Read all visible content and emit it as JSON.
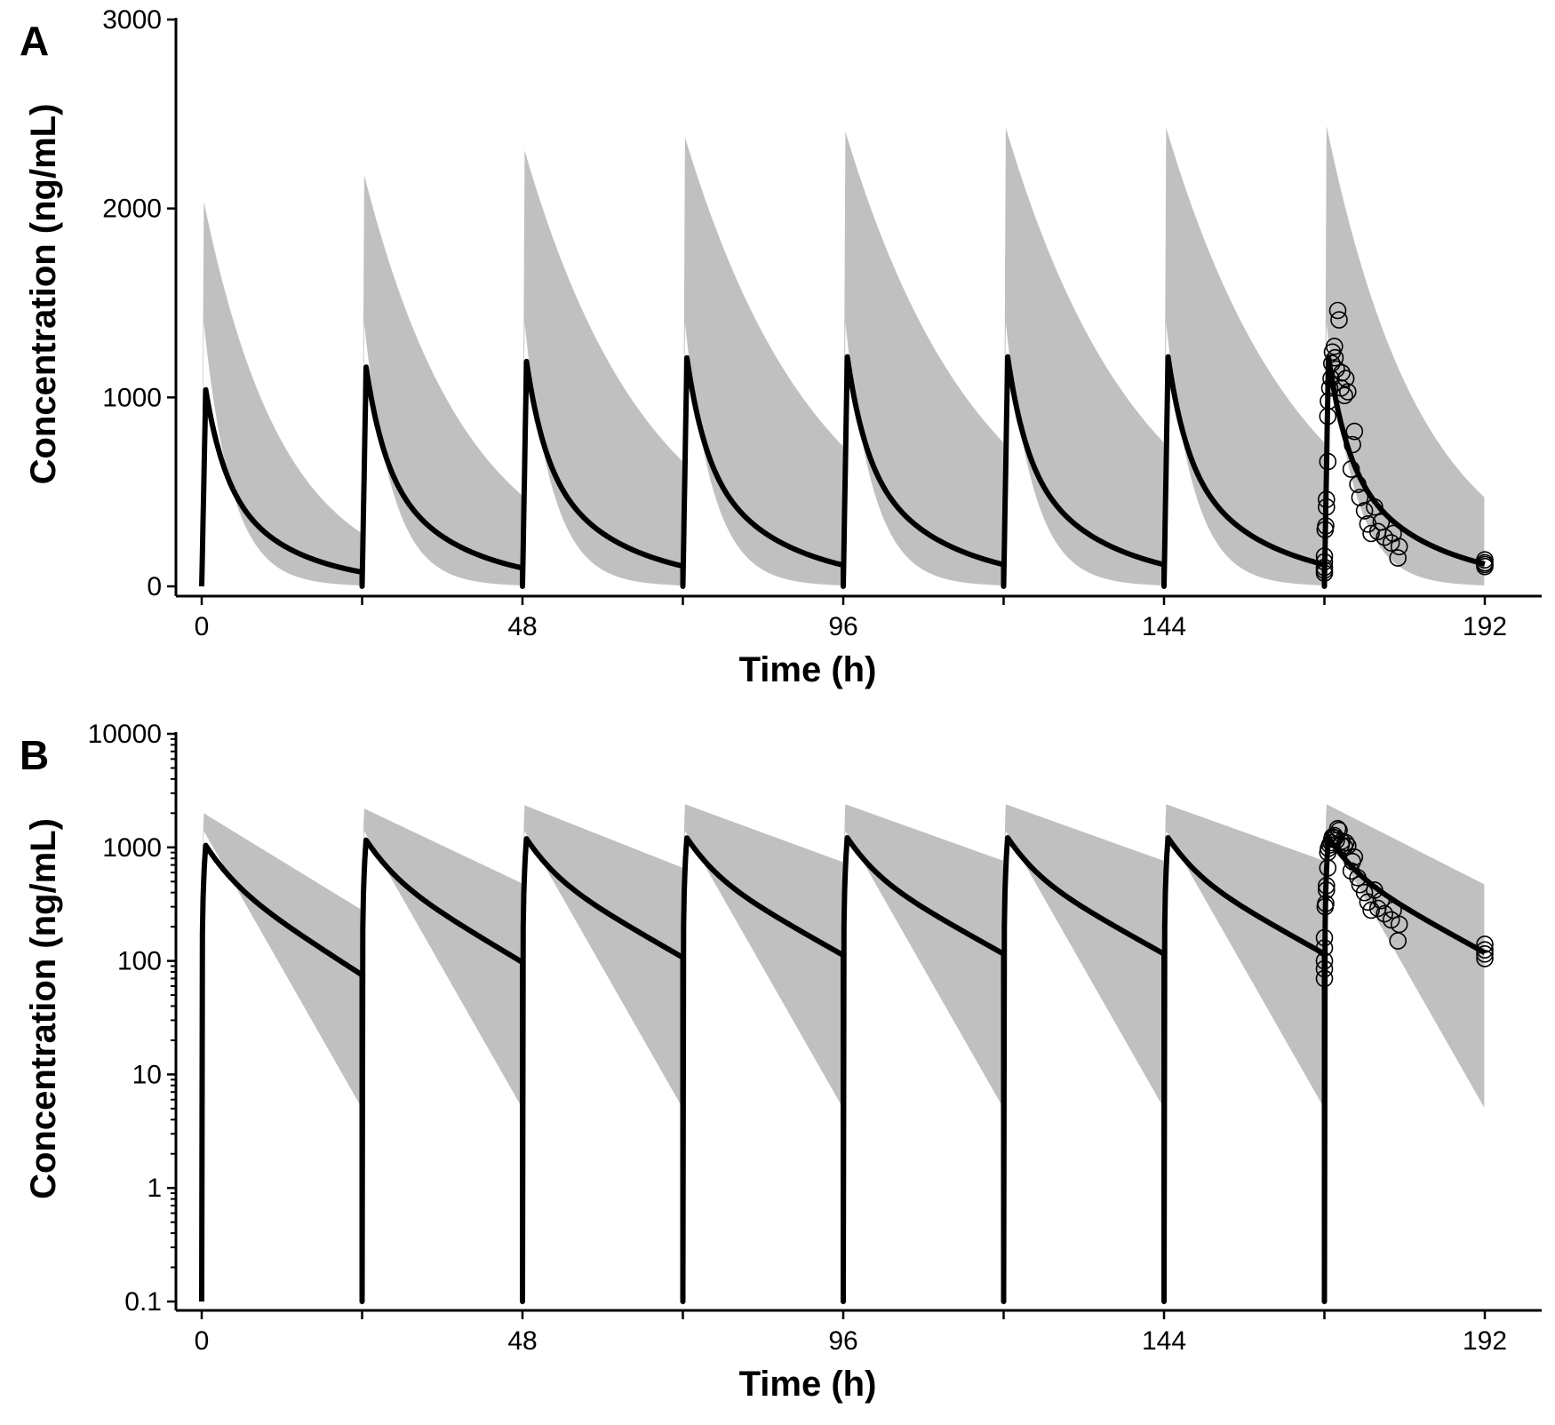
{
  "colors": {
    "band": "#c0c0c0",
    "line": "#000000",
    "observed": "#000000",
    "background": "#ffffff"
  },
  "chart_data": [
    {
      "panel": "A",
      "type": "line",
      "scale": "linear",
      "xlabel": "Time (h)",
      "ylabel": "Concentration (ng/mL)",
      "xlim": [
        0,
        192
      ],
      "ylim": [
        0,
        3000
      ],
      "xticks": [
        0,
        24,
        48,
        72,
        96,
        120,
        144,
        168,
        192
      ],
      "xtick_labels": [
        "0",
        "",
        "48",
        "",
        "96",
        "",
        "144",
        "",
        "192"
      ],
      "yticks": [
        0,
        1000,
        2000,
        3000
      ],
      "ytick_labels": [
        "0",
        "1000",
        "2000",
        "3000"
      ],
      "grid": false,
      "series": [
        {
          "kind": "band",
          "dose_times": [
            0,
            24,
            48,
            72,
            96,
            120,
            144,
            168
          ],
          "upper_peaks": [
            2040,
            2180,
            2310,
            2380,
            2410,
            2430,
            2430,
            2440
          ],
          "upper_trough_end": [
            280,
            480,
            660,
            740,
            760,
            760,
            760,
            470
          ],
          "lower_peak": 1400,
          "lower_trough_end": 5
        },
        {
          "kind": "line",
          "dose_times": [
            0,
            24,
            48,
            72,
            96,
            120,
            144,
            168
          ],
          "peaks": [
            1040,
            1160,
            1190,
            1210,
            1215,
            1215,
            1215,
            1215
          ],
          "troughs": [
            75,
            97,
            107,
            112,
            115,
            115,
            115,
            118
          ],
          "end_time": 192
        },
        {
          "kind": "scatter",
          "x": [
            168,
            168,
            168,
            168,
            168,
            168.1,
            168.2,
            168.3,
            168.3,
            168.5,
            168.5,
            168.6,
            168.8,
            169,
            169.1,
            169.2,
            169.5,
            169.6,
            169.8,
            170,
            170.2,
            170.5,
            170.6,
            171,
            171.2,
            171.5,
            172,
            172.2,
            172.5,
            173,
            173.3,
            174,
            174.5,
            175,
            175.5,
            176,
            176.5,
            177,
            178,
            178.3,
            179,
            179.2,
            192,
            192,
            192,
            192
          ],
          "y": [
            70,
            85,
            100,
            130,
            160,
            300,
            320,
            420,
            460,
            660,
            900,
            980,
            1050,
            1100,
            1180,
            1240,
            1270,
            1210,
            1150,
            1460,
            1410,
            1050,
            1130,
            1010,
            1100,
            1030,
            620,
            750,
            820,
            540,
            470,
            400,
            330,
            280,
            420,
            290,
            340,
            260,
            230,
            280,
            150,
            210,
            105,
            115,
            125,
            140
          ]
        }
      ]
    },
    {
      "panel": "B",
      "type": "line",
      "scale": "log",
      "xlabel": "Time (h)",
      "ylabel": "Concentration (ng/mL)",
      "xlim": [
        0,
        192
      ],
      "ylim": [
        0.1,
        10000
      ],
      "xticks": [
        0,
        24,
        48,
        72,
        96,
        120,
        144,
        168,
        192
      ],
      "xtick_labels": [
        "0",
        "",
        "48",
        "",
        "96",
        "",
        "144",
        "",
        "192"
      ],
      "yticks": [
        0.1,
        1,
        10,
        100,
        1000,
        10000
      ],
      "ytick_labels": [
        "0.1",
        "1",
        "10",
        "100",
        "1000",
        "10000"
      ],
      "grid": false,
      "series": [
        {
          "kind": "band",
          "dose_times": [
            0,
            24,
            48,
            72,
            96,
            120,
            144,
            168
          ],
          "upper_peaks": [
            2000,
            2200,
            2350,
            2400,
            2400,
            2400,
            2400,
            2400
          ],
          "upper_trough_end": [
            280,
            480,
            660,
            740,
            760,
            760,
            760,
            470
          ],
          "lower_peak": 1400,
          "lower_trough_end": 5
        },
        {
          "kind": "line",
          "dose_times": [
            0,
            24,
            48,
            72,
            96,
            120,
            144,
            168
          ],
          "peaks": [
            1040,
            1160,
            1190,
            1210,
            1215,
            1215,
            1215,
            1215
          ],
          "troughs": [
            75,
            97,
            107,
            112,
            115,
            115,
            115,
            118
          ],
          "end_time": 192
        },
        {
          "kind": "scatter",
          "x": [
            168,
            168,
            168,
            168,
            168,
            168.1,
            168.2,
            168.3,
            168.3,
            168.5,
            168.5,
            168.6,
            168.8,
            169,
            169.1,
            169.2,
            169.5,
            169.6,
            169.8,
            170,
            170.2,
            170.5,
            170.6,
            171,
            171.2,
            171.5,
            172,
            172.2,
            172.5,
            173,
            173.3,
            174,
            174.5,
            175,
            175.5,
            176,
            176.5,
            177,
            178,
            178.3,
            179,
            179.2,
            192,
            192,
            192,
            192
          ],
          "y": [
            70,
            85,
            100,
            130,
            160,
            300,
            320,
            420,
            460,
            660,
            900,
            980,
            1050,
            1100,
            1180,
            1240,
            1270,
            1210,
            1150,
            1460,
            1410,
            1050,
            1130,
            1010,
            1100,
            1030,
            620,
            750,
            820,
            540,
            470,
            400,
            330,
            280,
            420,
            290,
            340,
            260,
            230,
            280,
            150,
            210,
            105,
            115,
            125,
            140
          ]
        }
      ]
    }
  ]
}
